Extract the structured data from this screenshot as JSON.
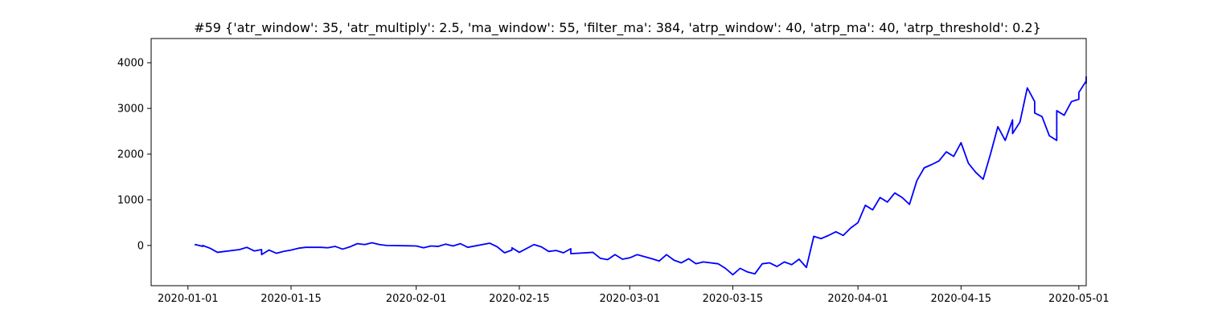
{
  "chart_data": {
    "type": "line",
    "title": "#59 {'atr_window': 35, 'atr_multiply': 2.5, 'ma_window': 55, 'filter_ma': 384, 'atrp_window': 40, 'atrp_ma': 40, 'atrp_threshold': 0.2}",
    "xlabel": "",
    "ylabel": "",
    "x_axis_type": "date",
    "xlim": [
      "2019-12-27",
      "2020-05-02"
    ],
    "ylim": [
      -880,
      4530
    ],
    "xticks": [
      "2020-01-01",
      "2020-01-15",
      "2020-02-01",
      "2020-02-15",
      "2020-03-01",
      "2020-03-15",
      "2020-04-01",
      "2020-04-15",
      "2020-05-01"
    ],
    "yticks": [
      0,
      1000,
      2000,
      3000,
      4000
    ],
    "grid": false,
    "legend": "none",
    "series": [
      {
        "color": "#0000ff",
        "points": [
          [
            "2020-01-02",
            0
          ],
          [
            "2020-01-02",
            20
          ],
          [
            "2020-01-03",
            -20
          ],
          [
            "2020-01-03",
            0
          ],
          [
            "2020-01-04",
            -60
          ],
          [
            "2020-01-05",
            -150
          ],
          [
            "2020-01-08",
            -90
          ],
          [
            "2020-01-09",
            -40
          ],
          [
            "2020-01-10",
            -120
          ],
          [
            "2020-01-11",
            -90
          ],
          [
            "2020-01-11",
            -200
          ],
          [
            "2020-01-12",
            -100
          ],
          [
            "2020-01-13",
            -170
          ],
          [
            "2020-01-14",
            -130
          ],
          [
            "2020-01-15",
            -100
          ],
          [
            "2020-01-16",
            -60
          ],
          [
            "2020-01-17",
            -40
          ],
          [
            "2020-01-19",
            -40
          ],
          [
            "2020-01-20",
            -50
          ],
          [
            "2020-01-21",
            -20
          ],
          [
            "2020-01-22",
            -80
          ],
          [
            "2020-01-23",
            -30
          ],
          [
            "2020-01-24",
            40
          ],
          [
            "2020-01-25",
            20
          ],
          [
            "2020-01-26",
            60
          ],
          [
            "2020-01-27",
            20
          ],
          [
            "2020-01-28",
            0
          ],
          [
            "2020-02-01",
            -10
          ],
          [
            "2020-02-02",
            -50
          ],
          [
            "2020-02-03",
            -10
          ],
          [
            "2020-02-04",
            -20
          ],
          [
            "2020-02-05",
            30
          ],
          [
            "2020-02-06",
            -10
          ],
          [
            "2020-02-07",
            40
          ],
          [
            "2020-02-08",
            -40
          ],
          [
            "2020-02-11",
            50
          ],
          [
            "2020-02-12",
            -30
          ],
          [
            "2020-02-13",
            -160
          ],
          [
            "2020-02-14",
            -100
          ],
          [
            "2020-02-14",
            -50
          ],
          [
            "2020-02-15",
            -150
          ],
          [
            "2020-02-17",
            20
          ],
          [
            "2020-02-18",
            -30
          ],
          [
            "2020-02-19",
            -130
          ],
          [
            "2020-02-20",
            -110
          ],
          [
            "2020-02-21",
            -160
          ],
          [
            "2020-02-22",
            -70
          ],
          [
            "2020-02-22",
            -130
          ],
          [
            "2020-02-22",
            -180
          ],
          [
            "2020-02-25",
            -150
          ],
          [
            "2020-02-26",
            -280
          ],
          [
            "2020-02-27",
            -310
          ],
          [
            "2020-02-28",
            -200
          ],
          [
            "2020-02-29",
            -300
          ],
          [
            "2020-03-01",
            -270
          ],
          [
            "2020-03-02",
            -200
          ],
          [
            "2020-03-04",
            -290
          ],
          [
            "2020-03-05",
            -340
          ],
          [
            "2020-03-06",
            -200
          ],
          [
            "2020-03-07",
            -320
          ],
          [
            "2020-03-08",
            -380
          ],
          [
            "2020-03-09",
            -290
          ],
          [
            "2020-03-10",
            -400
          ],
          [
            "2020-03-11",
            -360
          ],
          [
            "2020-03-13",
            -400
          ],
          [
            "2020-03-14",
            -500
          ],
          [
            "2020-03-15",
            -640
          ],
          [
            "2020-03-16",
            -500
          ],
          [
            "2020-03-17",
            -580
          ],
          [
            "2020-03-18",
            -620
          ],
          [
            "2020-03-19",
            -400
          ],
          [
            "2020-03-20",
            -380
          ],
          [
            "2020-03-21",
            -460
          ],
          [
            "2020-03-22",
            -360
          ],
          [
            "2020-03-23",
            -420
          ],
          [
            "2020-03-24",
            -300
          ],
          [
            "2020-03-25",
            -480
          ],
          [
            "2020-03-26",
            200
          ],
          [
            "2020-03-27",
            150
          ],
          [
            "2020-03-28",
            220
          ],
          [
            "2020-03-29",
            300
          ],
          [
            "2020-03-30",
            220
          ],
          [
            "2020-03-31",
            380
          ],
          [
            "2020-04-01",
            500
          ],
          [
            "2020-04-02",
            880
          ],
          [
            "2020-04-03",
            780
          ],
          [
            "2020-04-04",
            1050
          ],
          [
            "2020-04-05",
            950
          ],
          [
            "2020-04-06",
            1150
          ],
          [
            "2020-04-07",
            1050
          ],
          [
            "2020-04-08",
            900
          ],
          [
            "2020-04-09",
            1420
          ],
          [
            "2020-04-10",
            1700
          ],
          [
            "2020-04-11",
            1770
          ],
          [
            "2020-04-12",
            1850
          ],
          [
            "2020-04-13",
            2050
          ],
          [
            "2020-04-14",
            1950
          ],
          [
            "2020-04-15",
            2250
          ],
          [
            "2020-04-16",
            1800
          ],
          [
            "2020-04-17",
            1600
          ],
          [
            "2020-04-18",
            1450
          ],
          [
            "2020-04-19",
            2000
          ],
          [
            "2020-04-20",
            2600
          ],
          [
            "2020-04-21",
            2300
          ],
          [
            "2020-04-22",
            2750
          ],
          [
            "2020-04-22",
            2450
          ],
          [
            "2020-04-23",
            2700
          ],
          [
            "2020-04-24",
            3450
          ],
          [
            "2020-04-25",
            3150
          ],
          [
            "2020-04-25",
            2900
          ],
          [
            "2020-04-26",
            2820
          ],
          [
            "2020-04-27",
            2400
          ],
          [
            "2020-04-28",
            2300
          ],
          [
            "2020-04-28",
            2950
          ],
          [
            "2020-04-29",
            2850
          ],
          [
            "2020-04-30",
            3150
          ],
          [
            "2020-05-01",
            3200
          ],
          [
            "2020-05-01",
            3350
          ],
          [
            "2020-05-02",
            3600
          ],
          [
            "2020-05-02",
            3550
          ],
          [
            "2020-05-02",
            3700
          ]
        ]
      }
    ]
  }
}
